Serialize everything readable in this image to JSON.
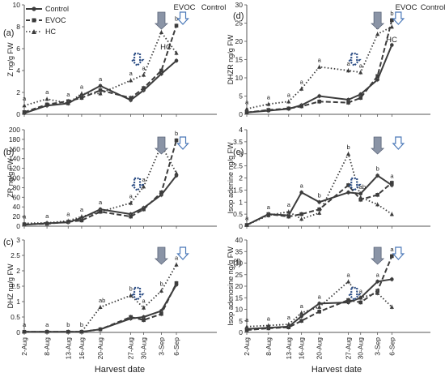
{
  "figure": {
    "xlabel_left": "Harvest date",
    "xlabel_right": "Harvest date",
    "legend": [
      "Control",
      "EVOC",
      "HC"
    ],
    "arrow_labels": {
      "evoc": "EVOC",
      "control": "Control",
      "hc": "HC"
    },
    "colors": {
      "series": "#3c3c3c",
      "evoc_arrow": "#8a94a6",
      "control_arrow": "#4a78b8",
      "hc_arrow": "#2e4f86",
      "error": "#888888"
    }
  },
  "chart_data": [
    {
      "type": "line",
      "panel": "(a)",
      "ylabel": "Z ng/g FW",
      "ylim": [
        0,
        10
      ],
      "yticks": [
        0,
        2,
        4,
        6,
        8,
        10
      ],
      "x": [
        "2-Aug",
        "8-Aug",
        "13-Aug",
        "16-Aug",
        "20-Aug",
        "27-Aug",
        "30-Aug",
        "3-Sep",
        "6-Sep"
      ],
      "series": [
        {
          "name": "Control",
          "values": [
            0.1,
            0.8,
            1.0,
            1.7,
            2.6,
            1.3,
            2.2,
            3.7,
            4.9
          ]
        },
        {
          "name": "EVOC",
          "values": [
            0.2,
            0.9,
            1.2,
            1.5,
            2.2,
            1.5,
            2.4,
            4.0,
            8.1
          ]
        },
        {
          "name": "HC",
          "values": [
            0.8,
            1.4,
            1.0,
            1.9,
            1.9,
            3.1,
            3.6,
            7.5,
            5.6
          ]
        }
      ],
      "annotations": [
        "a",
        "a",
        "a",
        "a",
        "a",
        "a",
        "a",
        "a",
        "b",
        "a",
        "b",
        "c",
        "a",
        "b"
      ]
    },
    {
      "type": "line",
      "panel": "(b)",
      "ylabel": "ZR ng/g FW",
      "ylim": [
        0,
        200
      ],
      "yticks": [
        0,
        20,
        40,
        60,
        80,
        100,
        120,
        140,
        160,
        180,
        200
      ],
      "x": [
        "2-Aug",
        "8-Aug",
        "13-Aug",
        "16-Aug",
        "20-Aug",
        "27-Aug",
        "30-Aug",
        "3-Sep",
        "6-Sep"
      ],
      "series": [
        {
          "name": "Control",
          "values": [
            3,
            6,
            8,
            17,
            35,
            25,
            38,
            65,
            105
          ]
        },
        {
          "name": "EVOC",
          "values": [
            4,
            5,
            9,
            12,
            30,
            20,
            35,
            70,
            178
          ]
        },
        {
          "name": "HC",
          "values": [
            6,
            7,
            11,
            20,
            30,
            48,
            82,
            168,
            110
          ]
        }
      ],
      "annotations": [
        "a",
        "a",
        "a",
        "a",
        "a",
        "a",
        "a",
        "a",
        "b",
        "b",
        "c",
        "a",
        "b"
      ]
    },
    {
      "type": "line",
      "panel": "(c)",
      "ylabel": "DHZ ng/g FW",
      "ylim": [
        0,
        3
      ],
      "yticks": [
        0,
        0.5,
        1,
        1.5,
        2,
        2.5,
        3
      ],
      "x": [
        "2-Aug",
        "8-Aug",
        "13-Aug",
        "16-Aug",
        "20-Aug",
        "27-Aug",
        "30-Aug",
        "3-Sep",
        "6-Sep"
      ],
      "series": [
        {
          "name": "Control",
          "values": [
            0.02,
            0.02,
            0.02,
            0.02,
            0.1,
            0.45,
            0.5,
            0.7,
            1.55
          ]
        },
        {
          "name": "EVOC",
          "values": [
            0.02,
            0.02,
            0.02,
            0.02,
            0.1,
            0.5,
            0.4,
            0.6,
            1.6
          ]
        },
        {
          "name": "HC",
          "values": [
            0.02,
            0.02,
            0.02,
            0.02,
            0.82,
            1.2,
            0.8,
            1.35,
            2.2
          ]
        }
      ],
      "annotations": [
        "a",
        "a",
        "b",
        "b",
        "ab",
        "b",
        "a",
        "b",
        "a",
        "a"
      ]
    },
    {
      "type": "line",
      "panel": "(d)",
      "ylabel": "DHZR ng/g FW",
      "ylim": [
        0,
        30
      ],
      "yticks": [
        0,
        5,
        10,
        15,
        20,
        25,
        30
      ],
      "x": [
        "2-Aug",
        "8-Aug",
        "13-Aug",
        "16-Aug",
        "20-Aug",
        "27-Aug",
        "30-Aug",
        "3-Sep",
        "6-Sep"
      ],
      "series": [
        {
          "name": "Control",
          "values": [
            0.5,
            1.0,
            1.5,
            2.5,
            5.0,
            4.0,
            5.5,
            9.5,
            19.0
          ]
        },
        {
          "name": "EVOC",
          "values": [
            0.5,
            1.2,
            1.6,
            2.2,
            3.5,
            3.2,
            4.5,
            10.5,
            25.8
          ]
        },
        {
          "name": "HC",
          "values": [
            1.5,
            2.8,
            3.5,
            7.0,
            13.0,
            12.0,
            11.5,
            22.0,
            24.0
          ]
        }
      ],
      "annotations": [
        "a",
        "a",
        "a",
        "a",
        "a",
        "a",
        "a",
        "b",
        "b",
        "b",
        "a",
        "b",
        "a",
        "b"
      ]
    },
    {
      "type": "line",
      "panel": "(e)",
      "ylabel": "Isop adenine ng/g FW",
      "ylim": [
        0,
        4
      ],
      "yticks": [
        0,
        0.5,
        1,
        1.5,
        2,
        2.5,
        3,
        3.5,
        4
      ],
      "x": [
        "2-Aug",
        "8-Aug",
        "13-Aug",
        "16-Aug",
        "20-Aug",
        "27-Aug",
        "30-Aug",
        "3-Sep",
        "6-Sep"
      ],
      "series": [
        {
          "name": "Control",
          "values": [
            0.05,
            0.5,
            0.45,
            1.4,
            1.0,
            1.4,
            1.35,
            2.1,
            1.7
          ]
        },
        {
          "name": "EVOC",
          "values": [
            0.05,
            0.5,
            0.4,
            0.5,
            0.7,
            1.7,
            1.1,
            1.3,
            1.8
          ]
        },
        {
          "name": "HC",
          "values": [
            0.05,
            0.45,
            0.6,
            0.3,
            0.55,
            3.0,
            1.2,
            0.9,
            0.5
          ]
        }
      ],
      "annotations": [
        "a",
        "a",
        "a",
        "a",
        "b",
        "b",
        "ab",
        "b",
        "a",
        "a",
        "a",
        "b",
        "a",
        "b"
      ]
    },
    {
      "type": "line",
      "panel": "(f)",
      "ylabel": "Isop adenosine ng/g FW",
      "ylim": [
        0,
        40
      ],
      "yticks": [
        0,
        5,
        10,
        15,
        20,
        25,
        30,
        35,
        40
      ],
      "x": [
        "2-Aug",
        "8-Aug",
        "13-Aug",
        "16-Aug",
        "20-Aug",
        "27-Aug",
        "30-Aug",
        "3-Sep",
        "6-Sep"
      ],
      "series": [
        {
          "name": "Control",
          "values": [
            1.5,
            2.0,
            2.5,
            7.0,
            12.5,
            13.0,
            15.0,
            22.0,
            23.0
          ]
        },
        {
          "name": "EVOC",
          "values": [
            1.0,
            1.8,
            2.2,
            5.0,
            9.0,
            14.0,
            13.0,
            18.0,
            33.0
          ]
        },
        {
          "name": "HC",
          "values": [
            2.5,
            3.0,
            3.5,
            8.5,
            11.0,
            22.0,
            15.0,
            17.0,
            11.0
          ]
        }
      ],
      "annotations": [
        "a",
        "a",
        "a",
        "a",
        "a",
        "a",
        "a",
        "a",
        "a",
        "b",
        "b",
        "b",
        "a",
        "b",
        "c"
      ]
    }
  ]
}
